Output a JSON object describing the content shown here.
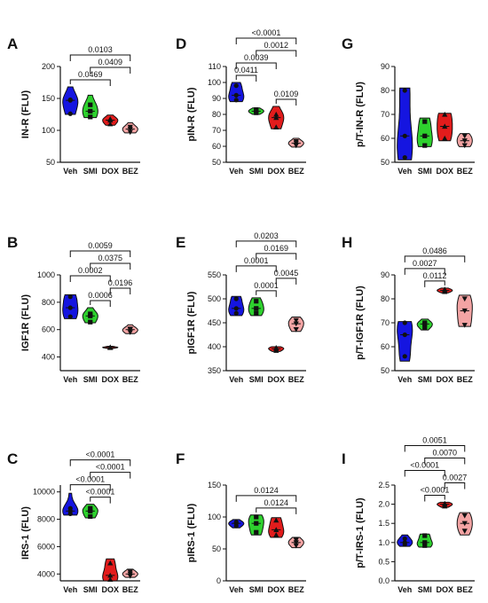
{
  "chart_data": [
    {
      "panel": "A",
      "type": "violin",
      "ylabel": "IN-R (FLU)",
      "ylim": [
        50,
        200
      ],
      "yticks": [
        50,
        100,
        150,
        200
      ],
      "categories": [
        "Veh",
        "SMI",
        "DOX",
        "BEZ"
      ],
      "series": [
        {
          "name": "Veh",
          "color": "#1515e0",
          "range": [
            125,
            168
          ],
          "points": [
            126,
            148,
            147
          ]
        },
        {
          "name": "SMI",
          "color": "#2ed12e",
          "range": [
            120,
            155
          ],
          "points": [
            121,
            140,
            130
          ]
        },
        {
          "name": "DOX",
          "color": "#e21c1c",
          "range": [
            108,
            124
          ],
          "points": [
            110,
            118,
            116
          ]
        },
        {
          "name": "BEZ",
          "color": "#f4a4a4",
          "range": [
            96,
            112
          ],
          "points": [
            97,
            105,
            102
          ]
        }
      ],
      "comparisons": [
        {
          "a": 0,
          "b": 3,
          "p": "0.0103"
        },
        {
          "a": 1,
          "b": 3,
          "p": "0.0409"
        },
        {
          "a": 0,
          "b": 2,
          "p": "0.0469"
        }
      ]
    },
    {
      "panel": "B",
      "type": "violin",
      "ylabel": "IGF1R (FLU)",
      "ylim": [
        300,
        1000
      ],
      "yticks": [
        400,
        600,
        800,
        1000
      ],
      "categories": [
        "Veh",
        "SMI",
        "DOX",
        "BEZ"
      ],
      "series": [
        {
          "name": "Veh",
          "color": "#1515e0",
          "range": [
            680,
            855
          ],
          "points": [
            695,
            760,
            840
          ]
        },
        {
          "name": "SMI",
          "color": "#2ed12e",
          "range": [
            650,
            760
          ],
          "points": [
            655,
            700,
            715
          ]
        },
        {
          "name": "DOX",
          "color": "#e21c1c",
          "range": [
            462,
            478
          ],
          "points": [
            468,
            472,
            470
          ]
        },
        {
          "name": "BEZ",
          "color": "#f4a4a4",
          "range": [
            570,
            635
          ],
          "points": [
            580,
            605,
            600
          ]
        }
      ],
      "comparisons": [
        {
          "a": 0,
          "b": 3,
          "p": "0.0059"
        },
        {
          "a": 1,
          "b": 3,
          "p": "0.0375"
        },
        {
          "a": 0,
          "b": 2,
          "p": "0.0002"
        },
        {
          "a": 2,
          "b": 3,
          "p": "0.0196"
        },
        {
          "a": 1,
          "b": 2,
          "p": "0.0006"
        }
      ]
    },
    {
      "panel": "C",
      "type": "violin",
      "ylabel": "IRS-1 (FLU)",
      "ylim": [
        3500,
        10500
      ],
      "yticks": [
        4000,
        6000,
        8000,
        10000
      ],
      "categories": [
        "Veh",
        "SMI",
        "DOX",
        "BEZ"
      ],
      "series": [
        {
          "name": "Veh",
          "color": "#1515e0",
          "range": [
            8300,
            9900
          ],
          "points": [
            8400,
            8600,
            8800
          ]
        },
        {
          "name": "SMI",
          "color": "#2ed12e",
          "range": [
            8100,
            9100
          ],
          "points": [
            8200,
            8600,
            8800
          ]
        },
        {
          "name": "DOX",
          "color": "#e21c1c",
          "range": [
            3500,
            5100
          ],
          "points": [
            3600,
            3900,
            4800
          ]
        },
        {
          "name": "BEZ",
          "color": "#f4a4a4",
          "range": [
            3750,
            4350
          ],
          "points": [
            3850,
            4000,
            4150
          ]
        }
      ],
      "comparisons": [
        {
          "a": 0,
          "b": 3,
          "p": "<0.0001"
        },
        {
          "a": 1,
          "b": 3,
          "p": "<0.0001"
        },
        {
          "a": 0,
          "b": 2,
          "p": "<0.0001"
        },
        {
          "a": 1,
          "b": 2,
          "p": "<0.0001"
        }
      ]
    },
    {
      "panel": "D",
      "type": "violin",
      "ylabel": "pIN-R (FLU)",
      "ylim": [
        50,
        110
      ],
      "yticks": [
        50,
        60,
        70,
        80,
        90,
        100,
        110
      ],
      "categories": [
        "Veh",
        "SMI",
        "DOX",
        "BEZ"
      ],
      "series": [
        {
          "name": "Veh",
          "color": "#1515e0",
          "range": [
            88,
            100
          ],
          "points": [
            89,
            92,
            98
          ]
        },
        {
          "name": "SMI",
          "color": "#2ed12e",
          "range": [
            80,
            84
          ],
          "points": [
            81,
            82,
            83
          ]
        },
        {
          "name": "DOX",
          "color": "#e21c1c",
          "range": [
            71,
            85
          ],
          "points": [
            72,
            78,
            80
          ]
        },
        {
          "name": "BEZ",
          "color": "#f4a4a4",
          "range": [
            59.5,
            65
          ],
          "points": [
            60.5,
            62,
            63
          ]
        }
      ],
      "comparisons": [
        {
          "a": 0,
          "b": 3,
          "p": "<0.0001"
        },
        {
          "a": 1,
          "b": 3,
          "p": "0.0012"
        },
        {
          "a": 0,
          "b": 2,
          "p": "0.0039"
        },
        {
          "a": 0,
          "b": 1,
          "p": "0.0411"
        },
        {
          "a": 2,
          "b": 3,
          "p": "0.0109"
        }
      ]
    },
    {
      "panel": "E",
      "type": "violin",
      "ylabel": "pIGF1R (FLU)",
      "ylim": [
        350,
        550
      ],
      "yticks": [
        350,
        400,
        450,
        500,
        550
      ],
      "categories": [
        "Veh",
        "SMI",
        "DOX",
        "BEZ"
      ],
      "series": [
        {
          "name": "Veh",
          "color": "#1515e0",
          "range": [
            465,
            505
          ],
          "points": [
            470,
            480,
            500
          ]
        },
        {
          "name": "SMI",
          "color": "#2ed12e",
          "range": [
            465,
            502
          ],
          "points": [
            470,
            480,
            495
          ]
        },
        {
          "name": "DOX",
          "color": "#e21c1c",
          "range": [
            390,
            400
          ],
          "points": [
            392,
            396,
            398
          ]
        },
        {
          "name": "BEZ",
          "color": "#f4a4a4",
          "range": [
            432,
            462
          ],
          "points": [
            436,
            448,
            455
          ]
        }
      ],
      "comparisons": [
        {
          "a": 0,
          "b": 3,
          "p": "0.0203"
        },
        {
          "a": 1,
          "b": 3,
          "p": "0.0169"
        },
        {
          "a": 0,
          "b": 2,
          "p": "0.0001"
        },
        {
          "a": 2,
          "b": 3,
          "p": "0.0045"
        },
        {
          "a": 1,
          "b": 2,
          "p": "0.0001"
        }
      ]
    },
    {
      "panel": "F",
      "type": "violin",
      "ylabel": "pIRS-1 (FLU)",
      "ylim": [
        0,
        150
      ],
      "yticks": [
        0,
        50,
        100,
        150
      ],
      "categories": [
        "Veh",
        "SMI",
        "DOX",
        "BEZ"
      ],
      "series": [
        {
          "name": "Veh",
          "color": "#1515e0",
          "range": [
            83,
            96
          ],
          "points": [
            86,
            90,
            92
          ]
        },
        {
          "name": "SMI",
          "color": "#2ed12e",
          "range": [
            72,
            103
          ],
          "points": [
            76,
            90,
            100
          ]
        },
        {
          "name": "DOX",
          "color": "#e21c1c",
          "range": [
            68,
            99
          ],
          "points": [
            72,
            80,
            95
          ]
        },
        {
          "name": "BEZ",
          "color": "#f4a4a4",
          "range": [
            52,
            68
          ],
          "points": [
            55,
            60,
            64
          ]
        }
      ],
      "comparisons": [
        {
          "a": 0,
          "b": 3,
          "p": "0.0124"
        },
        {
          "a": 1,
          "b": 3,
          "p": "0.0124"
        }
      ]
    },
    {
      "panel": "G",
      "type": "violin",
      "ylabel": "p/T-IN-R (FLU)",
      "ylim": [
        50,
        90
      ],
      "yticks": [
        50,
        60,
        70,
        80,
        90
      ],
      "categories": [
        "Veh",
        "SMI",
        "DOX",
        "BEZ"
      ],
      "series": [
        {
          "name": "Veh",
          "color": "#1515e0",
          "range": [
            51,
            81
          ],
          "points": [
            52,
            61,
            80
          ]
        },
        {
          "name": "SMI",
          "color": "#2ed12e",
          "range": [
            56.5,
            68.5
          ],
          "points": [
            57,
            61,
            67
          ]
        },
        {
          "name": "DOX",
          "color": "#e21c1c",
          "range": [
            59,
            70.5
          ],
          "points": [
            60,
            65,
            70
          ]
        },
        {
          "name": "BEZ",
          "color": "#f4a4a4",
          "range": [
            56.5,
            62
          ],
          "points": [
            57,
            59,
            61
          ]
        }
      ],
      "comparisons": []
    },
    {
      "panel": "H",
      "type": "violin",
      "ylabel": "p/T-IGF1R (FLU)",
      "ylim": [
        50,
        90
      ],
      "yticks": [
        50,
        60,
        70,
        80,
        90
      ],
      "categories": [
        "Veh",
        "SMI",
        "DOX",
        "BEZ"
      ],
      "series": [
        {
          "name": "Veh",
          "color": "#1515e0",
          "range": [
            54,
            70.5
          ],
          "points": [
            56,
            65,
            70
          ]
        },
        {
          "name": "SMI",
          "color": "#2ed12e",
          "range": [
            67,
            71.5
          ],
          "points": [
            68,
            69.5,
            70
          ]
        },
        {
          "name": "DOX",
          "color": "#e21c1c",
          "range": [
            82.5,
            84.5
          ],
          "points": [
            83,
            83.5,
            84
          ]
        },
        {
          "name": "BEZ",
          "color": "#f4a4a4",
          "range": [
            68.5,
            81.5
          ],
          "points": [
            69,
            75,
            80
          ]
        }
      ],
      "comparisons": [
        {
          "a": 0,
          "b": 3,
          "p": "0.0486"
        },
        {
          "a": 0,
          "b": 2,
          "p": "0.0027"
        },
        {
          "a": 1,
          "b": 2,
          "p": "0.0112"
        }
      ]
    },
    {
      "panel": "I",
      "type": "violin",
      "ylabel": "p/T-IRS-1 (FLU)",
      "ylim": [
        0,
        2.5
      ],
      "yticks": [
        0.0,
        0.5,
        1.0,
        1.5,
        2.0,
        2.5
      ],
      "ytick_labels": [
        "0.0",
        "0.5",
        "1.0",
        "1.5",
        "2.0",
        "2.5"
      ],
      "categories": [
        "Veh",
        "SMI",
        "DOX",
        "BEZ"
      ],
      "series": [
        {
          "name": "Veh",
          "color": "#1515e0",
          "range": [
            0.9,
            1.2
          ],
          "points": [
            0.95,
            1.0,
            1.1
          ]
        },
        {
          "name": "SMI",
          "color": "#2ed12e",
          "range": [
            0.88,
            1.22
          ],
          "points": [
            0.92,
            1.0,
            1.18
          ]
        },
        {
          "name": "DOX",
          "color": "#e21c1c",
          "range": [
            1.92,
            2.05
          ],
          "points": [
            1.95,
            2.0,
            2.02
          ]
        },
        {
          "name": "BEZ",
          "color": "#f4a4a4",
          "range": [
            1.2,
            1.78
          ],
          "points": [
            1.3,
            1.5,
            1.7
          ]
        }
      ],
      "comparisons": [
        {
          "a": 0,
          "b": 3,
          "p": "0.0051"
        },
        {
          "a": 1,
          "b": 3,
          "p": "0.0070"
        },
        {
          "a": 0,
          "b": 2,
          "p": "<0.0001"
        },
        {
          "a": 2,
          "b": 3,
          "p": "0.0027"
        },
        {
          "a": 1,
          "b": 2,
          "p": "<0.0001"
        }
      ]
    }
  ]
}
